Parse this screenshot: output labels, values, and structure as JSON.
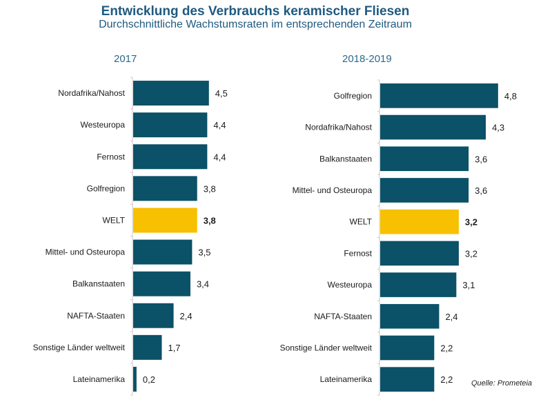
{
  "chart_data": [
    {
      "type": "bar",
      "orientation": "horizontal",
      "title": "2017",
      "categories": [
        "Nordafrika/Nahost",
        "Westeuropa",
        "Fernost",
        "Golfregion",
        "WELT",
        "Mittel- und Osteuropa",
        "Balkanstaaten",
        "NAFTA-Staaten",
        "Sonstige Länder weltweit",
        "Lateinamerika"
      ],
      "values": [
        4.5,
        4.4,
        4.4,
        3.8,
        3.8,
        3.5,
        3.4,
        2.4,
        1.7,
        0.2
      ],
      "value_labels": [
        "4,5",
        "4,4",
        "4,4",
        "3,8",
        "3,8",
        "3,5",
        "3,4",
        "2,4",
        "1,7",
        "0,2"
      ],
      "highlight": "WELT",
      "xlabel": "",
      "ylabel": "",
      "grid": false
    },
    {
      "type": "bar",
      "orientation": "horizontal",
      "title": "2018-2019",
      "categories": [
        "Golfregion",
        "Nordafrika/Nahost",
        "Balkanstaaten",
        "Mittel- und Osteuropa",
        "WELT",
        "Fernost",
        "Westeuropa",
        "NAFTA-Staaten",
        "Sonstige Länder weltweit",
        "Lateinamerika"
      ],
      "values": [
        4.8,
        4.3,
        3.6,
        3.6,
        3.2,
        3.2,
        3.1,
        2.4,
        2.2,
        2.2
      ],
      "value_labels": [
        "4,8",
        "4,3",
        "3,6",
        "3,6",
        "3,2",
        "3,2",
        "3,1",
        "2,4",
        "2,2",
        "2,2"
      ],
      "highlight": "WELT",
      "xlabel": "",
      "ylabel": "",
      "grid": false
    }
  ],
  "header": {
    "title": "Entwicklung des Verbrauchs keramischer Fliesen",
    "subtitle": "Durchschnittliche Wachstumsraten im entsprechenden Zeitraum"
  },
  "source": "Quelle: Prometeia",
  "colors": {
    "bar": "#0b5167",
    "highlight": "#f7c000",
    "title": "#1f5a80",
    "panel_title": "#2a6a8c",
    "axis": "#c8c8c8"
  }
}
